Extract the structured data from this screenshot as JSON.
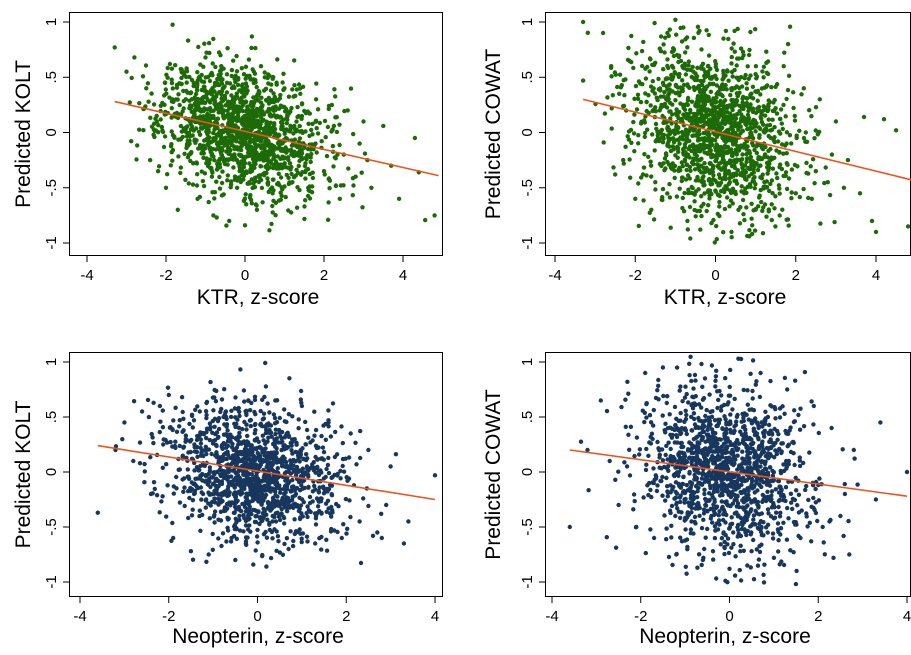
{
  "chart_data": [
    {
      "type": "scatter",
      "xlabel": "KTR, z-score",
      "ylabel": "Predicted KOLT",
      "xticks": [
        -4,
        -2,
        0,
        2,
        4
      ],
      "yticks": [
        -1,
        -0.5,
        0,
        0.5,
        1
      ],
      "ytick_labels": [
        "-1",
        "-.5",
        "0",
        ".5",
        "1"
      ],
      "xlim": [
        -4.4,
        4.9
      ],
      "ylim": [
        -1.1,
        1.08
      ],
      "fit": {
        "x": [
          -3.3,
          4.9
        ],
        "y": [
          0.28,
          -0.39
        ]
      },
      "points": [
        [
          -3.3,
          0.77
        ],
        [
          -2.8,
          0.68
        ],
        [
          -3.0,
          0.55
        ],
        [
          -2.5,
          0.4
        ],
        [
          -2.3,
          0.08
        ],
        [
          -2.4,
          -0.25
        ],
        [
          -2.2,
          -0.35
        ],
        [
          -2.0,
          -0.5
        ],
        [
          -1.9,
          0.62
        ],
        [
          -1.7,
          -0.7
        ],
        [
          -1.5,
          0.3
        ],
        [
          -1.3,
          0.45
        ],
        [
          -1.2,
          -0.6
        ],
        [
          -1.0,
          0.68
        ],
        [
          -0.9,
          0.72
        ],
        [
          -0.8,
          -0.75
        ],
        [
          -0.6,
          0.6
        ],
        [
          -0.4,
          -0.8
        ],
        [
          -0.3,
          0.65
        ],
        [
          -0.2,
          -0.5
        ],
        [
          0.0,
          -0.84
        ],
        [
          0.1,
          0.66
        ],
        [
          0.3,
          -0.7
        ],
        [
          0.5,
          0.5
        ],
        [
          0.7,
          -0.55
        ],
        [
          1.0,
          0.4
        ],
        [
          1.2,
          -0.45
        ],
        [
          1.4,
          0.35
        ],
        [
          1.6,
          -0.5
        ],
        [
          1.8,
          0.3
        ],
        [
          2.0,
          -0.35
        ],
        [
          2.2,
          0.25
        ],
        [
          2.4,
          -0.6
        ],
        [
          2.6,
          0.2
        ],
        [
          2.8,
          -0.4
        ],
        [
          3.0,
          0.1
        ],
        [
          3.2,
          -0.5
        ],
        [
          3.5,
          0.06
        ],
        [
          3.7,
          -0.3
        ],
        [
          3.9,
          -0.6
        ],
        [
          4.3,
          -0.05
        ],
        [
          4.4,
          -0.36
        ],
        [
          4.8,
          -0.75
        ],
        [
          1.6,
          -0.15
        ],
        [
          2.1,
          0.05
        ],
        [
          2.5,
          -0.2
        ],
        [
          3.1,
          -0.25
        ],
        [
          2.9,
          -0.1
        ]
      ],
      "cloud": {
        "cx": -0.05,
        "cy": 0.02,
        "sx": 1.0,
        "sy": 0.28,
        "slope": -0.08,
        "n": 1500,
        "seed": 11
      },
      "point_color": "#1d6b06",
      "fit_color": "#e8561c"
    },
    {
      "type": "scatter",
      "xlabel": "KTR, z-score",
      "ylabel": "Predicted COWAT",
      "xticks": [
        -4,
        -2,
        0,
        2,
        4
      ],
      "yticks": [
        -1,
        -0.5,
        0,
        0.5,
        1
      ],
      "ytick_labels": [
        "-1",
        "-.5",
        "0",
        ".5",
        "1"
      ],
      "xlim": [
        -4.4,
        4.9
      ],
      "ylim": [
        -1.1,
        1.08
      ],
      "fit": {
        "x": [
          -3.3,
          4.9
        ],
        "y": [
          0.3,
          -0.43
        ]
      },
      "points": [
        [
          -3.3,
          1.0
        ],
        [
          -3.3,
          0.47
        ],
        [
          -2.8,
          0.9
        ],
        [
          -2.6,
          0.6
        ],
        [
          -2.4,
          0.35
        ],
        [
          -2.5,
          -0.38
        ],
        [
          -2.3,
          -0.25
        ],
        [
          -2.0,
          -0.6
        ],
        [
          -1.8,
          0.82
        ],
        [
          -1.6,
          -0.7
        ],
        [
          -1.2,
          0.9
        ],
        [
          -1.0,
          1.02
        ],
        [
          -0.8,
          0.95
        ],
        [
          -0.7,
          -0.8
        ],
        [
          -0.4,
          0.92
        ],
        [
          -0.1,
          -0.82
        ],
        [
          0.2,
          0.85
        ],
        [
          0.4,
          -0.9
        ],
        [
          0.7,
          0.7
        ],
        [
          0.9,
          -0.78
        ],
        [
          1.2,
          0.5
        ],
        [
          1.4,
          -0.65
        ],
        [
          1.7,
          0.6
        ],
        [
          2.0,
          -0.55
        ],
        [
          2.2,
          0.4
        ],
        [
          2.4,
          -0.6
        ],
        [
          2.6,
          0.3
        ],
        [
          2.8,
          -0.45
        ],
        [
          3.0,
          0.1
        ],
        [
          3.2,
          -0.5
        ],
        [
          3.3,
          -0.25
        ],
        [
          3.6,
          -0.55
        ],
        [
          3.9,
          -0.8
        ],
        [
          4.2,
          0.12
        ],
        [
          4.0,
          -0.9
        ],
        [
          4.8,
          -0.85
        ],
        [
          4.5,
          0.02
        ],
        [
          3.7,
          0.14
        ],
        [
          2.9,
          -0.2
        ],
        [
          2.5,
          -0.35
        ]
      ],
      "cloud": {
        "cx": -0.05,
        "cy": 0.0,
        "sx": 1.0,
        "sy": 0.38,
        "slope": -0.1,
        "n": 1500,
        "seed": 23
      },
      "point_color": "#1d6b06",
      "fit_color": "#e8561c"
    },
    {
      "type": "scatter",
      "xlabel": "Neopterin, z-score",
      "ylabel": "Predicted KOLT",
      "xticks": [
        -4,
        -2,
        0,
        2,
        4
      ],
      "yticks": [
        -1,
        -0.5,
        0,
        0.5,
        1
      ],
      "ytick_labels": [
        "-1",
        "-.5",
        "0",
        ".5",
        "1"
      ],
      "xlim": [
        -4.2,
        4.1
      ],
      "ylim": [
        -1.1,
        1.08
      ],
      "fit": {
        "x": [
          -3.6,
          4.0
        ],
        "y": [
          0.24,
          -0.25
        ]
      },
      "points": [
        [
          -3.6,
          -0.37
        ],
        [
          -3.2,
          0.2
        ],
        [
          -3.0,
          0.45
        ],
        [
          -2.8,
          0.1
        ],
        [
          -2.6,
          0.55
        ],
        [
          -2.4,
          -0.2
        ],
        [
          -2.2,
          0.6
        ],
        [
          -2.0,
          0.7
        ],
        [
          -1.9,
          -0.6
        ],
        [
          -1.7,
          0.68
        ],
        [
          -1.5,
          -0.72
        ],
        [
          -1.3,
          0.55
        ],
        [
          -1.1,
          -0.75
        ],
        [
          -0.8,
          0.66
        ],
        [
          -0.5,
          -0.8
        ],
        [
          -0.3,
          0.64
        ],
        [
          0.2,
          -0.86
        ],
        [
          0.4,
          0.65
        ],
        [
          0.7,
          -0.7
        ],
        [
          1.0,
          0.6
        ],
        [
          1.3,
          -0.65
        ],
        [
          1.6,
          0.45
        ],
        [
          1.9,
          -0.6
        ],
        [
          2.1,
          0.35
        ],
        [
          2.3,
          -0.45
        ],
        [
          2.5,
          0.2
        ],
        [
          2.7,
          -0.55
        ],
        [
          2.9,
          -0.3
        ],
        [
          3.0,
          0.05
        ],
        [
          3.3,
          -0.65
        ],
        [
          3.4,
          -0.45
        ],
        [
          4.0,
          -0.03
        ],
        [
          2.8,
          -0.6
        ]
      ],
      "cloud": {
        "cx": -0.1,
        "cy": 0.0,
        "sx": 0.95,
        "sy": 0.3,
        "slope": -0.06,
        "n": 1400,
        "seed": 37
      },
      "point_color": "#17375e",
      "fit_color": "#e8561c"
    },
    {
      "type": "scatter",
      "xlabel": "Neopterin, z-score",
      "ylabel": "Predicted COWAT",
      "xticks": [
        -4,
        -2,
        0,
        2,
        4
      ],
      "yticks": [
        -1,
        -0.5,
        0,
        0.5,
        1
      ],
      "ytick_labels": [
        "-1",
        "-.5",
        "0",
        ".5",
        "1"
      ],
      "xlim": [
        -4.2,
        4.1
      ],
      "ylim": [
        -1.1,
        1.08
      ],
      "fit": {
        "x": [
          -3.6,
          4.0
        ],
        "y": [
          0.2,
          -0.22
        ]
      },
      "points": [
        [
          -3.6,
          -0.5
        ],
        [
          -3.2,
          0.2
        ],
        [
          -2.9,
          0.65
        ],
        [
          -2.7,
          0.1
        ],
        [
          -2.5,
          -0.3
        ],
        [
          -2.3,
          0.82
        ],
        [
          -2.1,
          -0.5
        ],
        [
          -1.9,
          0.9
        ],
        [
          -1.7,
          -0.6
        ],
        [
          -1.5,
          0.95
        ],
        [
          -1.2,
          -0.75
        ],
        [
          -0.9,
          0.88
        ],
        [
          -0.6,
          -0.8
        ],
        [
          -0.3,
          0.92
        ],
        [
          0.0,
          -0.88
        ],
        [
          0.2,
          1.03
        ],
        [
          0.4,
          -0.85
        ],
        [
          0.7,
          0.9
        ],
        [
          1.0,
          -0.78
        ],
        [
          1.3,
          0.75
        ],
        [
          1.6,
          -0.6
        ],
        [
          1.9,
          0.6
        ],
        [
          2.1,
          -0.5
        ],
        [
          2.3,
          0.4
        ],
        [
          2.5,
          -0.4
        ],
        [
          2.7,
          -0.75
        ],
        [
          2.8,
          0.2
        ],
        [
          3.3,
          -0.25
        ],
        [
          3.4,
          0.45
        ],
        [
          4.0,
          0.0
        ],
        [
          2.6,
          -0.2
        ]
      ],
      "cloud": {
        "cx": -0.05,
        "cy": 0.0,
        "sx": 0.95,
        "sy": 0.38,
        "slope": -0.05,
        "n": 1400,
        "seed": 53
      },
      "point_color": "#17375e",
      "fit_color": "#e8561c"
    }
  ]
}
